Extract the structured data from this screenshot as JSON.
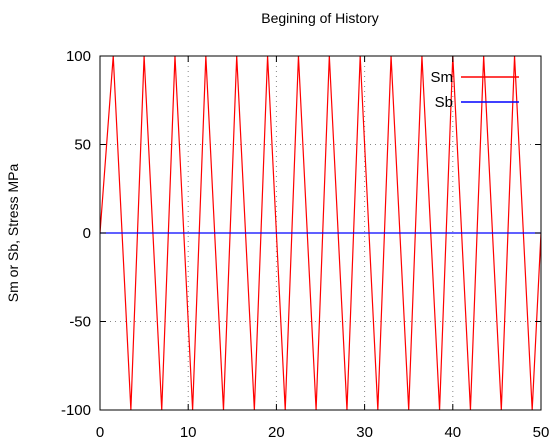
{
  "chart_data": {
    "type": "line",
    "title": "Begining of History",
    "xlabel": "",
    "ylabel": "Sm or Sb, Stress MPa",
    "xlim": [
      0,
      50
    ],
    "ylim": [
      -100,
      100
    ],
    "x_ticks": [
      "0",
      "10",
      "20",
      "30",
      "40",
      "50"
    ],
    "y_ticks": [
      "100",
      "50",
      "0",
      "-50",
      "-100"
    ],
    "grid": true,
    "legend_position": "top-right",
    "series": [
      {
        "name": "Sm",
        "color": "#ff0000",
        "x": [
          0,
          1.5,
          3.5,
          5,
          7,
          8.5,
          10.5,
          12,
          14,
          15.5,
          17.5,
          19,
          21,
          22.5,
          24.5,
          26,
          28,
          29.5,
          31.5,
          33,
          35,
          36.5,
          38.5,
          40,
          42,
          43.5,
          45.5,
          47,
          49,
          50
        ],
        "y": [
          0,
          100,
          -100,
          100,
          -100,
          100,
          -100,
          100,
          -100,
          100,
          -100,
          100,
          -100,
          100,
          -100,
          100,
          -100,
          100,
          -100,
          100,
          -100,
          100,
          -100,
          100,
          -100,
          100,
          -100,
          100,
          -100,
          0
        ]
      },
      {
        "name": "Sb",
        "color": "#0000ff",
        "x": [
          0,
          50
        ],
        "y": [
          0,
          0
        ]
      }
    ]
  }
}
